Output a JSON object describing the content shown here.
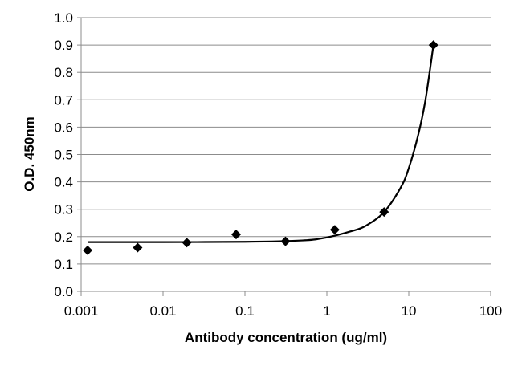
{
  "chart_data": {
    "type": "scatter",
    "title": "",
    "xlabel": "Antibody concentration (ug/ml)",
    "ylabel": "O.D. 450nm",
    "x_scale": "log",
    "xlim": [
      0.001,
      100
    ],
    "ylim": [
      0.0,
      1.0
    ],
    "x_ticks": [
      0.001,
      0.01,
      0.1,
      1,
      10,
      100
    ],
    "x_tick_labels": [
      "0.001",
      "0.01",
      "0.1",
      "1",
      "10",
      "100"
    ],
    "y_ticks": [
      0.0,
      0.1,
      0.2,
      0.3,
      0.4,
      0.5,
      0.6,
      0.7,
      0.8,
      0.9,
      1.0
    ],
    "y_tick_labels": [
      "0.0",
      "0.1",
      "0.2",
      "0.3",
      "0.4",
      "0.5",
      "0.6",
      "0.7",
      "0.8",
      "0.9",
      "1.0"
    ],
    "grid": "horizontal",
    "legend": "none",
    "marker": "diamond",
    "series": [
      {
        "points": [
          {
            "x": 0.0012,
            "y": 0.15
          },
          {
            "x": 0.0049,
            "y": 0.16
          },
          {
            "x": 0.0195,
            "y": 0.178
          },
          {
            "x": 0.078,
            "y": 0.208
          },
          {
            "x": 0.3125,
            "y": 0.183
          },
          {
            "x": 1.25,
            "y": 0.225
          },
          {
            "x": 5.0,
            "y": 0.29
          },
          {
            "x": 20.0,
            "y": 0.9
          }
        ]
      }
    ],
    "fit_curve": {
      "type": "exponential",
      "points": [
        {
          "x": 0.0012,
          "y": 0.18
        },
        {
          "x": 0.01,
          "y": 0.18
        },
        {
          "x": 0.1,
          "y": 0.181
        },
        {
          "x": 0.5,
          "y": 0.186
        },
        {
          "x": 1.0,
          "y": 0.197
        },
        {
          "x": 2.0,
          "y": 0.22
        },
        {
          "x": 3.0,
          "y": 0.24
        },
        {
          "x": 5.0,
          "y": 0.29
        },
        {
          "x": 8.0,
          "y": 0.38
        },
        {
          "x": 10.0,
          "y": 0.45
        },
        {
          "x": 13.0,
          "y": 0.57
        },
        {
          "x": 16.0,
          "y": 0.7
        },
        {
          "x": 20.0,
          "y": 0.9
        }
      ]
    },
    "colors": {
      "grid": "#8c8c8c",
      "axis": "#8c8c8c",
      "marker": "#000000",
      "curve": "#000000"
    }
  }
}
